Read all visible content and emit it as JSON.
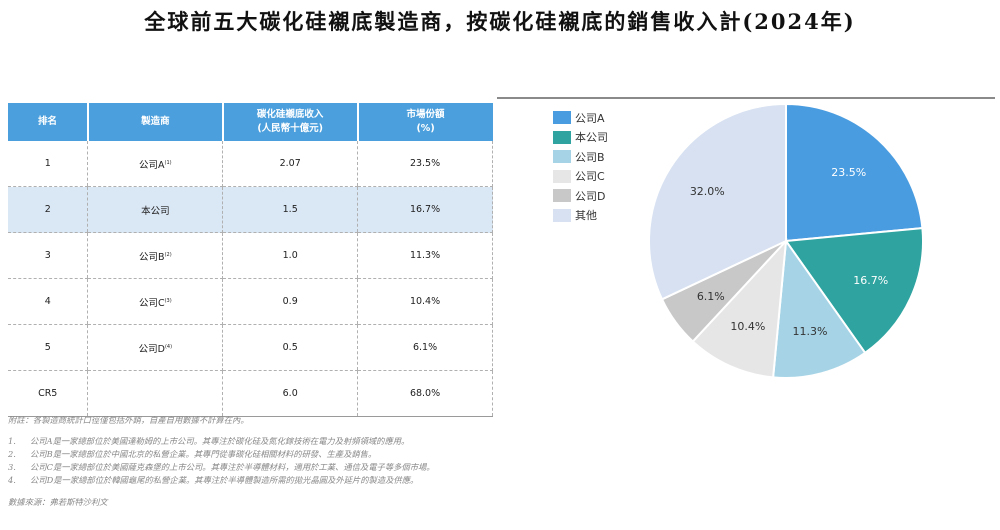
{
  "title": "全球前五大碳化硅襯底製造商，按碳化硅襯底的銷售收入計(2024年)",
  "table": {
    "headers": {
      "rank": "排名",
      "maker": "製造商",
      "revenue_line1": "碳化硅襯底收入",
      "revenue_line2": "(人民幣十億元)",
      "share_line1": "市場份額",
      "share_line2": "(%)"
    },
    "rows": [
      {
        "rank": "1",
        "maker": "公司A",
        "note": "(1)",
        "revenue": "2.07",
        "share": "23.5%"
      },
      {
        "rank": "2",
        "maker": "本公司",
        "note": "",
        "revenue": "1.5",
        "share": "16.7%"
      },
      {
        "rank": "3",
        "maker": "公司B",
        "note": "(2)",
        "revenue": "1.0",
        "share": "11.3%"
      },
      {
        "rank": "4",
        "maker": "公司C",
        "note": "(3)",
        "revenue": "0.9",
        "share": "10.4%"
      },
      {
        "rank": "5",
        "maker": "公司D",
        "note": "(4)",
        "revenue": "0.5",
        "share": "6.1%"
      },
      {
        "rank": "CR5",
        "maker": "",
        "note": "",
        "revenue": "6.0",
        "share": "68.0%"
      }
    ]
  },
  "notes": {
    "remark": "附註：各製造商統計口徑僅包括外銷，自產自用數據不計算在內。",
    "items": [
      {
        "num": "1.",
        "text": "公司A是一家總部位於美國達勒姆的上市公司。其專注於碳化硅及氮化鎵技術在電力及射頻領域的應用。"
      },
      {
        "num": "2.",
        "text": "公司B是一家總部位於中國北京的私營企業。其專門從事碳化硅相關材料的研發、生產及銷售。"
      },
      {
        "num": "3.",
        "text": "公司C是一家總部位於美國薩克森堡的上市公司。其專注於半導體材料，適用於工業、通信及電子等多個市場。"
      },
      {
        "num": "4.",
        "text": "公司D是一家總部位於韓國龜尾的私營企業。其專注於半導體製造所需的拋光晶圓及外延片的製造及供應。"
      }
    ],
    "source": "數據來源：弗若斯特沙利文"
  },
  "chart_data": {
    "type": "pie",
    "legend_position": "left",
    "series": [
      {
        "name": "公司A",
        "value": 23.5,
        "label": "23.5%",
        "color": "#4a9ce0"
      },
      {
        "name": "本公司",
        "value": 16.7,
        "label": "16.7%",
        "color": "#2ea39f"
      },
      {
        "name": "公司B",
        "value": 11.3,
        "label": "11.3%",
        "color": "#a6d4e6"
      },
      {
        "name": "公司C",
        "value": 10.4,
        "label": "10.4%",
        "color": "#e6e6e6"
      },
      {
        "name": "公司D",
        "value": 6.1,
        "label": "6.1%",
        "color": "#c8c8c8"
      },
      {
        "name": "其他",
        "value": 32.0,
        "label": "32.0%",
        "color": "#d7e1f1"
      }
    ]
  }
}
